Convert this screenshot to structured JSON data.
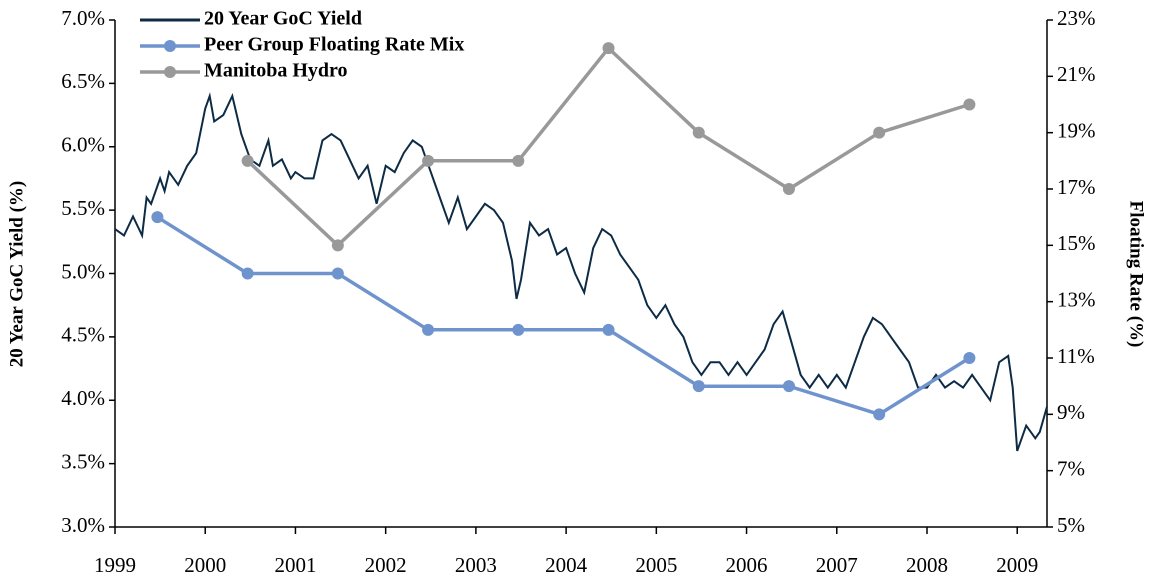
{
  "chart_data": {
    "type": "line",
    "ylabel": "20 Year GoC Yield (%)",
    "y2label": "Floating Rate (%)",
    "legend": "upper left",
    "xlim": [
      1999,
      2009.33
    ],
    "xticks": [
      1999,
      2000,
      2001,
      2002,
      2003,
      2004,
      2005,
      2006,
      2007,
      2008,
      2009
    ],
    "ylim": [
      3.0,
      7.0
    ],
    "yticks": [
      {
        "value": 3.0,
        "label": "3.0%"
      },
      {
        "value": 3.5,
        "label": "3.5%"
      },
      {
        "value": 4.0,
        "label": "4.0%"
      },
      {
        "value": 4.5,
        "label": "4.5%"
      },
      {
        "value": 5.0,
        "label": "5.0%"
      },
      {
        "value": 5.5,
        "label": "5.5%"
      },
      {
        "value": 6.0,
        "label": "6.0%"
      },
      {
        "value": 6.5,
        "label": "6.5%"
      },
      {
        "value": 7.0,
        "label": "7.0%"
      }
    ],
    "y2lim": [
      5,
      23
    ],
    "y2ticks": [
      {
        "value": 5,
        "label": "5%"
      },
      {
        "value": 7,
        "label": "7%"
      },
      {
        "value": 9,
        "label": "9%"
      },
      {
        "value": 11,
        "label": "11%"
      },
      {
        "value": 13,
        "label": "13%"
      },
      {
        "value": 15,
        "label": "15%"
      },
      {
        "value": 17,
        "label": "17%"
      },
      {
        "value": 19,
        "label": "19%"
      },
      {
        "value": 21,
        "label": "21%"
      },
      {
        "value": 23,
        "label": "23%"
      }
    ],
    "series": [
      {
        "name": "20 Year GoC Yield",
        "color": "#0d2b45",
        "markers": false,
        "x": [
          1999.0,
          1999.1,
          1999.2,
          1999.3,
          1999.35,
          1999.4,
          1999.5,
          1999.55,
          1999.6,
          1999.7,
          1999.8,
          1999.9,
          2000.0,
          2000.05,
          2000.1,
          2000.2,
          2000.3,
          2000.4,
          2000.5,
          2000.6,
          2000.7,
          2000.75,
          2000.85,
          2000.95,
          2001.0,
          2001.1,
          2001.2,
          2001.3,
          2001.4,
          2001.5,
          2001.6,
          2001.7,
          2001.8,
          2001.9,
          2002.0,
          2002.1,
          2002.2,
          2002.3,
          2002.4,
          2002.5,
          2002.6,
          2002.7,
          2002.8,
          2002.9,
          2003.0,
          2003.1,
          2003.2,
          2003.3,
          2003.4,
          2003.45,
          2003.5,
          2003.6,
          2003.7,
          2003.8,
          2003.9,
          2004.0,
          2004.1,
          2004.2,
          2004.3,
          2004.4,
          2004.5,
          2004.6,
          2004.7,
          2004.8,
          2004.9,
          2005.0,
          2005.1,
          2005.2,
          2005.3,
          2005.4,
          2005.5,
          2005.6,
          2005.7,
          2005.8,
          2005.9,
          2006.0,
          2006.1,
          2006.2,
          2006.3,
          2006.4,
          2006.5,
          2006.6,
          2006.7,
          2006.8,
          2006.9,
          2007.0,
          2007.1,
          2007.2,
          2007.3,
          2007.4,
          2007.5,
          2007.6,
          2007.7,
          2007.8,
          2007.9,
          2008.0,
          2008.1,
          2008.2,
          2008.3,
          2008.4,
          2008.5,
          2008.6,
          2008.7,
          2008.8,
          2008.9,
          2008.95,
          2009.0,
          2009.05,
          2009.1,
          2009.2,
          2009.25,
          2009.33
        ],
        "values": [
          5.35,
          5.3,
          5.45,
          5.3,
          5.6,
          5.55,
          5.75,
          5.65,
          5.8,
          5.7,
          5.85,
          5.95,
          6.3,
          6.4,
          6.2,
          6.25,
          6.4,
          6.1,
          5.9,
          5.85,
          6.05,
          5.85,
          5.9,
          5.75,
          5.8,
          5.75,
          5.75,
          6.05,
          6.1,
          6.05,
          5.9,
          5.75,
          5.85,
          5.55,
          5.85,
          5.8,
          5.95,
          6.05,
          6.0,
          5.8,
          5.6,
          5.4,
          5.6,
          5.35,
          5.45,
          5.55,
          5.5,
          5.4,
          5.1,
          4.8,
          4.95,
          5.4,
          5.3,
          5.35,
          5.15,
          5.2,
          5.0,
          4.85,
          5.2,
          5.35,
          5.3,
          5.15,
          5.05,
          4.95,
          4.75,
          4.65,
          4.75,
          4.6,
          4.5,
          4.3,
          4.2,
          4.3,
          4.3,
          4.2,
          4.3,
          4.2,
          4.3,
          4.4,
          4.6,
          4.7,
          4.45,
          4.2,
          4.1,
          4.2,
          4.1,
          4.2,
          4.1,
          4.3,
          4.5,
          4.65,
          4.6,
          4.5,
          4.4,
          4.3,
          4.1,
          4.1,
          4.2,
          4.1,
          4.15,
          4.1,
          4.2,
          4.1,
          4.0,
          4.3,
          4.35,
          4.1,
          3.6,
          3.7,
          3.8,
          3.7,
          3.75,
          3.95
        ]
      },
      {
        "name": "Peer Group Floating Rate Mix",
        "color": "#6f94cd",
        "markers": true,
        "axis": "y2",
        "x": [
          1999.47,
          2000.47,
          2001.47,
          2002.47,
          2003.47,
          2004.47,
          2005.47,
          2006.47,
          2007.47,
          2008.47
        ],
        "values": [
          16,
          14,
          14,
          12,
          12,
          12,
          10,
          10,
          9,
          11
        ]
      },
      {
        "name": "Manitoba Hydro",
        "color": "#999999",
        "markers": true,
        "axis": "y2",
        "x": [
          2000.47,
          2001.47,
          2002.47,
          2003.47,
          2004.47,
          2005.47,
          2006.47,
          2007.47,
          2008.47
        ],
        "values": [
          18,
          15,
          18,
          18,
          22,
          19,
          17,
          19,
          20
        ]
      }
    ]
  }
}
